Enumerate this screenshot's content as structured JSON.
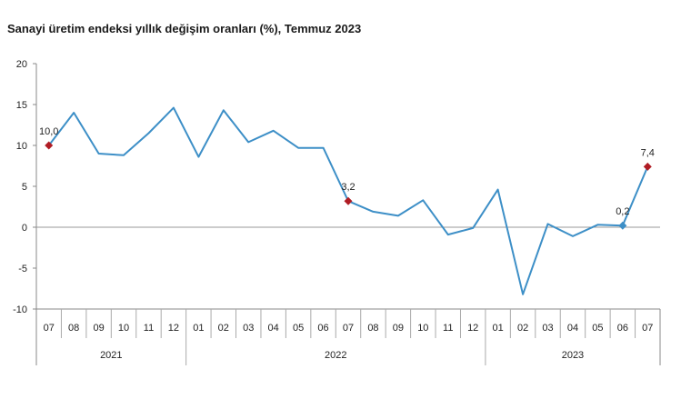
{
  "chart_data": {
    "type": "line",
    "title": "Sanayi üretim endeksi yıllık değişim oranları (%), Temmuz 2023",
    "ylim": [
      -10,
      20
    ],
    "yticks": [
      20,
      15,
      10,
      5,
      0,
      -5,
      -10
    ],
    "x": [
      "07",
      "08",
      "09",
      "10",
      "11",
      "12",
      "01",
      "02",
      "03",
      "04",
      "05",
      "06",
      "07",
      "08",
      "09",
      "10",
      "11",
      "12",
      "01",
      "02",
      "03",
      "04",
      "05",
      "06",
      "07"
    ],
    "years": [
      {
        "label": "2021",
        "start": 0,
        "end": 5
      },
      {
        "label": "2022",
        "start": 6,
        "end": 17
      },
      {
        "label": "2023",
        "start": 18,
        "end": 24
      }
    ],
    "series": [
      {
        "values": [
          10.0,
          14.0,
          9.0,
          8.8,
          11.5,
          14.6,
          8.6,
          14.3,
          10.4,
          11.8,
          9.7,
          9.7,
          3.2,
          1.9,
          1.4,
          3.3,
          -0.9,
          -0.1,
          4.6,
          -8.2,
          0.4,
          -1.1,
          0.3,
          0.2,
          7.4
        ],
        "color": "#3d8fc7"
      }
    ],
    "annotations": [
      {
        "index": 0,
        "text": "10,0",
        "marker_color": "#b01c24"
      },
      {
        "index": 12,
        "text": "3,2",
        "marker_color": "#b01c24"
      },
      {
        "index": 23,
        "text": "0,2",
        "marker_color": "#3d8fc7"
      },
      {
        "index": 24,
        "text": "7,4",
        "marker_color": "#b01c24"
      }
    ],
    "grid": false,
    "zero_line": true
  }
}
